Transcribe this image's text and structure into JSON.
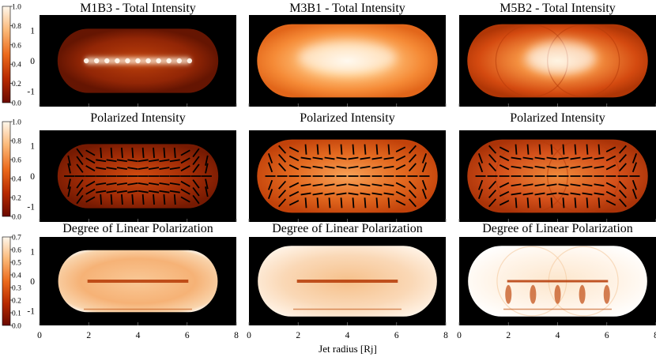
{
  "chart_data": {
    "type": "heatmap",
    "colormap": "black-red-orange-yellow-white",
    "colors": {
      "background": "#000000",
      "low": "#6a0a00",
      "mid": "#e05010",
      "high": "#ffe8c0",
      "peak": "#ffffff",
      "ticks": "#000000"
    },
    "xlabel": "Jet radius [Rj]",
    "xticks": [
      "0",
      "2",
      "4",
      "6",
      "8"
    ],
    "yticks": [
      "1",
      "0",
      "-1"
    ],
    "xlim": [
      0,
      8
    ],
    "ylim": [
      -1.5,
      1.5
    ],
    "column_titles": [
      "M1B3",
      "M3B1",
      "M5B2"
    ],
    "rows": [
      {
        "quantity": "Total Intensity",
        "panel_titles": [
          "M1B3 - Total Intensity",
          "M3B1 - Total Intensity",
          "M5B2 - Total Intensity"
        ],
        "colorbar": {
          "ticks": [
            "1.0",
            "0.8",
            "0.6",
            "0.4",
            "0.2",
            "0.0"
          ],
          "range": [
            0.0,
            1.0
          ]
        },
        "polarization_vectors": false
      },
      {
        "quantity": "Polarized Intensity",
        "panel_titles": [
          "Polarized Intensity",
          "Polarized Intensity",
          "Polarized Intensity"
        ],
        "colorbar": {
          "ticks": [
            "1.0",
            "0.8",
            "0.6",
            "0.4",
            "0.2",
            "0.0"
          ],
          "range": [
            0.0,
            1.0
          ]
        },
        "polarization_vectors": true
      },
      {
        "quantity": "Degree of Linear Polarization",
        "panel_titles": [
          "Degree of Linear Polarization",
          "Degree of Linear Polarization",
          "Degree of Linear Polarization"
        ],
        "colorbar": {
          "ticks": [
            "0.7",
            "0.6",
            "0.5",
            "0.4",
            "0.3",
            "0.2",
            "0.1",
            "0.0"
          ],
          "range": [
            0.0,
            0.7
          ]
        },
        "polarization_vectors": false
      }
    ]
  }
}
